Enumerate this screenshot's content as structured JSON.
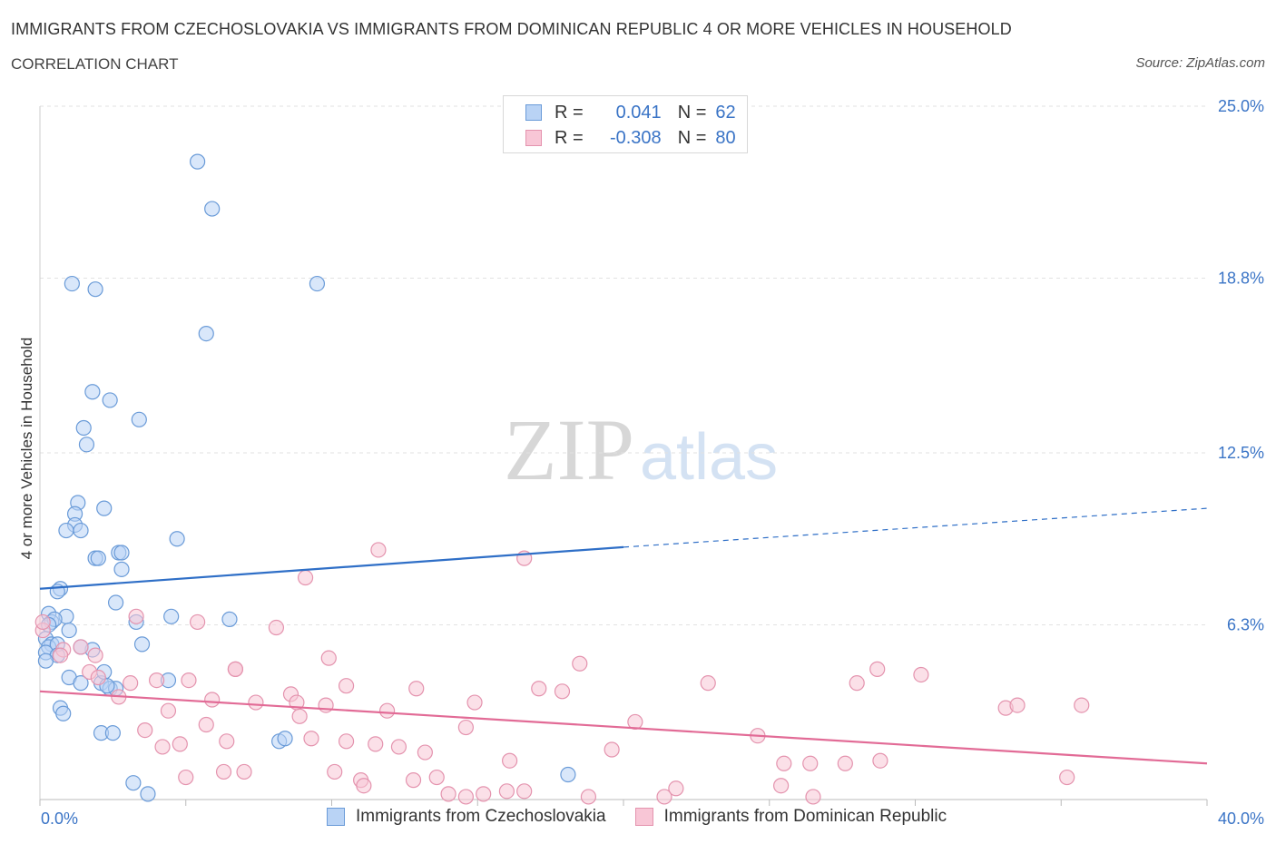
{
  "title": "IMMIGRANTS FROM CZECHOSLOVAKIA VS IMMIGRANTS FROM DOMINICAN REPUBLIC 4 OR MORE VEHICLES IN HOUSEHOLD",
  "subtitle": "CORRELATION CHART",
  "source": "Source: ZipAtlas.com",
  "watermark": {
    "zip": "ZIP",
    "atlas": "atlas"
  },
  "legend": {
    "r_label": "R =",
    "n_label": "N =",
    "rows": [
      {
        "r": "0.041",
        "n": "62"
      },
      {
        "r": "-0.308",
        "n": "80"
      }
    ]
  },
  "colors": {
    "blue_fill": "#b9d3f5",
    "blue_stroke": "#6a9bd8",
    "blue_line": "#2f6fc7",
    "pink_fill": "#f8c6d6",
    "pink_stroke": "#e493ae",
    "pink_line": "#e26b96",
    "tick_text": "#3a74c6",
    "grid": "#e2e2e2"
  },
  "chart_data": {
    "type": "scatter",
    "title": "IMMIGRANTS FROM CZECHOSLOVAKIA VS IMMIGRANTS FROM DOMINICAN REPUBLIC 4 OR MORE VEHICLES IN HOUSEHOLD",
    "xlabel": "",
    "ylabel": "4 or more Vehicles in Household",
    "xlim": [
      0,
      40
    ],
    "ylim": [
      0,
      25
    ],
    "x_tick_labels": [
      {
        "value": 0,
        "label": "0.0%"
      },
      {
        "value": 40,
        "label": "40.0%"
      }
    ],
    "y_tick_labels": [
      {
        "value": 6.3,
        "label": "6.3%"
      },
      {
        "value": 12.5,
        "label": "12.5%"
      },
      {
        "value": 18.8,
        "label": "18.8%"
      },
      {
        "value": 25.0,
        "label": "25.0%"
      }
    ],
    "grid": true,
    "legend_position": "top-center",
    "series": [
      {
        "name": "Immigrants from Czechoslovakia",
        "color": "#6a9bd8",
        "points": [
          [
            5.4,
            23.0
          ],
          [
            5.9,
            21.3
          ],
          [
            9.5,
            18.6
          ],
          [
            1.1,
            18.6
          ],
          [
            1.9,
            18.4
          ],
          [
            5.7,
            16.8
          ],
          [
            1.8,
            14.7
          ],
          [
            2.4,
            14.4
          ],
          [
            3.4,
            13.7
          ],
          [
            1.5,
            13.4
          ],
          [
            1.6,
            12.8
          ],
          [
            1.3,
            10.7
          ],
          [
            2.2,
            10.5
          ],
          [
            1.2,
            10.3
          ],
          [
            1.2,
            9.9
          ],
          [
            0.9,
            9.7
          ],
          [
            1.4,
            9.7
          ],
          [
            4.7,
            9.4
          ],
          [
            2.7,
            8.9
          ],
          [
            2.8,
            8.9
          ],
          [
            1.9,
            8.7
          ],
          [
            2.8,
            8.3
          ],
          [
            0.7,
            7.6
          ],
          [
            0.6,
            7.5
          ],
          [
            2.6,
            7.1
          ],
          [
            0.3,
            6.7
          ],
          [
            0.9,
            6.6
          ],
          [
            4.5,
            6.6
          ],
          [
            6.5,
            6.5
          ],
          [
            0.4,
            6.4
          ],
          [
            0.5,
            6.5
          ],
          [
            3.3,
            6.4
          ],
          [
            1.0,
            6.1
          ],
          [
            0.2,
            5.8
          ],
          [
            0.4,
            5.6
          ],
          [
            0.3,
            5.5
          ],
          [
            0.6,
            5.6
          ],
          [
            1.8,
            5.4
          ],
          [
            3.5,
            5.6
          ],
          [
            0.2,
            5.3
          ],
          [
            1.4,
            5.5
          ],
          [
            0.6,
            5.2
          ],
          [
            0.2,
            5.0
          ],
          [
            4.4,
            4.3
          ],
          [
            1.0,
            4.4
          ],
          [
            1.4,
            4.2
          ],
          [
            2.1,
            4.2
          ],
          [
            2.2,
            4.6
          ],
          [
            2.4,
            4.0
          ],
          [
            2.6,
            4.0
          ],
          [
            2.3,
            4.1
          ],
          [
            0.7,
            3.3
          ],
          [
            0.8,
            3.1
          ],
          [
            2.1,
            2.4
          ],
          [
            2.5,
            2.4
          ],
          [
            8.2,
            2.1
          ],
          [
            8.4,
            2.2
          ],
          [
            3.2,
            0.6
          ],
          [
            3.7,
            0.2
          ],
          [
            18.1,
            0.9
          ],
          [
            0.3,
            6.3
          ],
          [
            2.0,
            8.7
          ]
        ]
      },
      {
        "name": "Immigrants from Dominican Republic",
        "color": "#e493ae",
        "points": [
          [
            11.6,
            9.0
          ],
          [
            16.6,
            8.7
          ],
          [
            9.1,
            8.0
          ],
          [
            3.3,
            6.6
          ],
          [
            5.4,
            6.4
          ],
          [
            8.1,
            6.2
          ],
          [
            0.1,
            6.1
          ],
          [
            1.4,
            5.5
          ],
          [
            1.9,
            5.2
          ],
          [
            0.8,
            5.4
          ],
          [
            0.7,
            5.2
          ],
          [
            9.9,
            5.1
          ],
          [
            18.5,
            4.9
          ],
          [
            6.7,
            4.7
          ],
          [
            28.7,
            4.7
          ],
          [
            30.2,
            4.5
          ],
          [
            1.7,
            4.6
          ],
          [
            2.0,
            4.4
          ],
          [
            4.0,
            4.3
          ],
          [
            5.1,
            4.3
          ],
          [
            3.1,
            4.2
          ],
          [
            22.9,
            4.2
          ],
          [
            28.0,
            4.2
          ],
          [
            10.5,
            4.1
          ],
          [
            12.9,
            4.0
          ],
          [
            17.1,
            4.0
          ],
          [
            17.9,
            3.9
          ],
          [
            8.6,
            3.8
          ],
          [
            2.7,
            3.7
          ],
          [
            5.9,
            3.6
          ],
          [
            7.4,
            3.5
          ],
          [
            8.8,
            3.5
          ],
          [
            9.8,
            3.4
          ],
          [
            14.9,
            3.5
          ],
          [
            35.7,
            3.4
          ],
          [
            33.1,
            3.3
          ],
          [
            33.5,
            3.4
          ],
          [
            4.4,
            3.2
          ],
          [
            11.9,
            3.2
          ],
          [
            8.9,
            3.0
          ],
          [
            20.4,
            2.8
          ],
          [
            5.7,
            2.7
          ],
          [
            14.6,
            2.6
          ],
          [
            3.6,
            2.5
          ],
          [
            6.4,
            2.1
          ],
          [
            9.3,
            2.2
          ],
          [
            10.5,
            2.1
          ],
          [
            11.5,
            2.0
          ],
          [
            24.6,
            2.3
          ],
          [
            4.8,
            2.0
          ],
          [
            4.2,
            1.9
          ],
          [
            12.3,
            1.9
          ],
          [
            13.2,
            1.7
          ],
          [
            19.6,
            1.8
          ],
          [
            16.1,
            1.4
          ],
          [
            25.5,
            1.3
          ],
          [
            27.6,
            1.3
          ],
          [
            28.8,
            1.4
          ],
          [
            26.4,
            1.3
          ],
          [
            6.3,
            1.0
          ],
          [
            7.0,
            1.0
          ],
          [
            10.1,
            1.0
          ],
          [
            11.0,
            0.7
          ],
          [
            12.8,
            0.7
          ],
          [
            13.6,
            0.8
          ],
          [
            5.0,
            0.8
          ],
          [
            11.1,
            0.5
          ],
          [
            14.0,
            0.2
          ],
          [
            14.6,
            0.1
          ],
          [
            15.2,
            0.2
          ],
          [
            16.0,
            0.3
          ],
          [
            16.6,
            0.3
          ],
          [
            18.8,
            0.1
          ],
          [
            21.4,
            0.1
          ],
          [
            21.8,
            0.4
          ],
          [
            25.4,
            0.5
          ],
          [
            26.5,
            0.1
          ],
          [
            35.2,
            0.8
          ],
          [
            0.1,
            6.4
          ],
          [
            6.7,
            4.7
          ]
        ]
      }
    ],
    "trend_lines": [
      {
        "series": "Immigrants from Czechoslovakia",
        "x": [
          0,
          20
        ],
        "y": [
          7.6,
          9.1
        ],
        "dashed_extension": {
          "x": [
            20,
            40
          ],
          "y": [
            9.1,
            10.5
          ]
        }
      },
      {
        "series": "Immigrants from Dominican Republic",
        "x": [
          0,
          40
        ],
        "y": [
          3.9,
          1.3
        ]
      }
    ]
  }
}
